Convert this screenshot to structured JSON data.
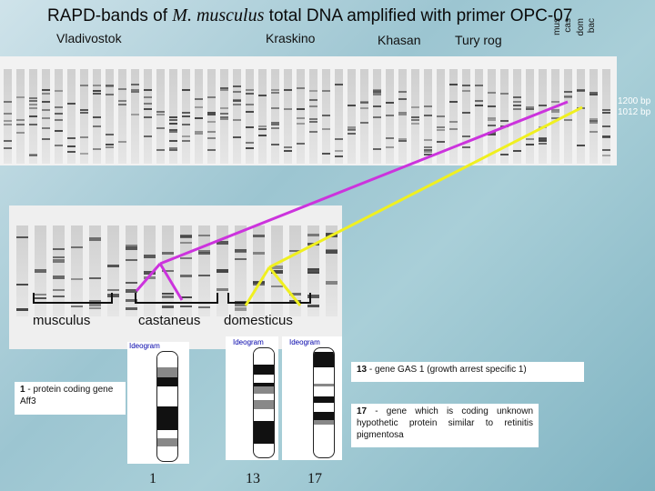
{
  "title": {
    "prefix": "RAPD-bands of ",
    "species": "M. musculus",
    "suffix": " total DNA amplified with primer OPC-07"
  },
  "groups": {
    "vladivostok": "Vladivostok",
    "kraskino": "Kraskino",
    "khasan": "Khasan",
    "tury_rog": "Tury rog"
  },
  "refs": [
    "mus",
    "cas",
    "dom",
    "bac"
  ],
  "sizes": [
    "1200 bp",
    "1012 bp"
  ],
  "subspecies": {
    "musculus": "musculus",
    "castaneus": "castaneus",
    "domesticus": "domesticus"
  },
  "ideogram": {
    "title_1": "Ideogram",
    "title_2": "Ideogram",
    "title_3": "Ideogram"
  },
  "chromosomes": {
    "c1": "1",
    "c13": "13",
    "c17": "17"
  },
  "notes": {
    "gene13": {
      "num": "13",
      "text": " - gene GAS 1 (growth arrest specific 1)"
    },
    "gene1": {
      "num": "1",
      "text": " - protein coding gene Aff3"
    },
    "gene17": {
      "num": "17",
      "text": " - gene which is coding unknown hypothetic protein similar to retinitis pigmentosa"
    }
  },
  "colors": {
    "magenta": "#cc33dd",
    "yellow": "#f0f020"
  }
}
